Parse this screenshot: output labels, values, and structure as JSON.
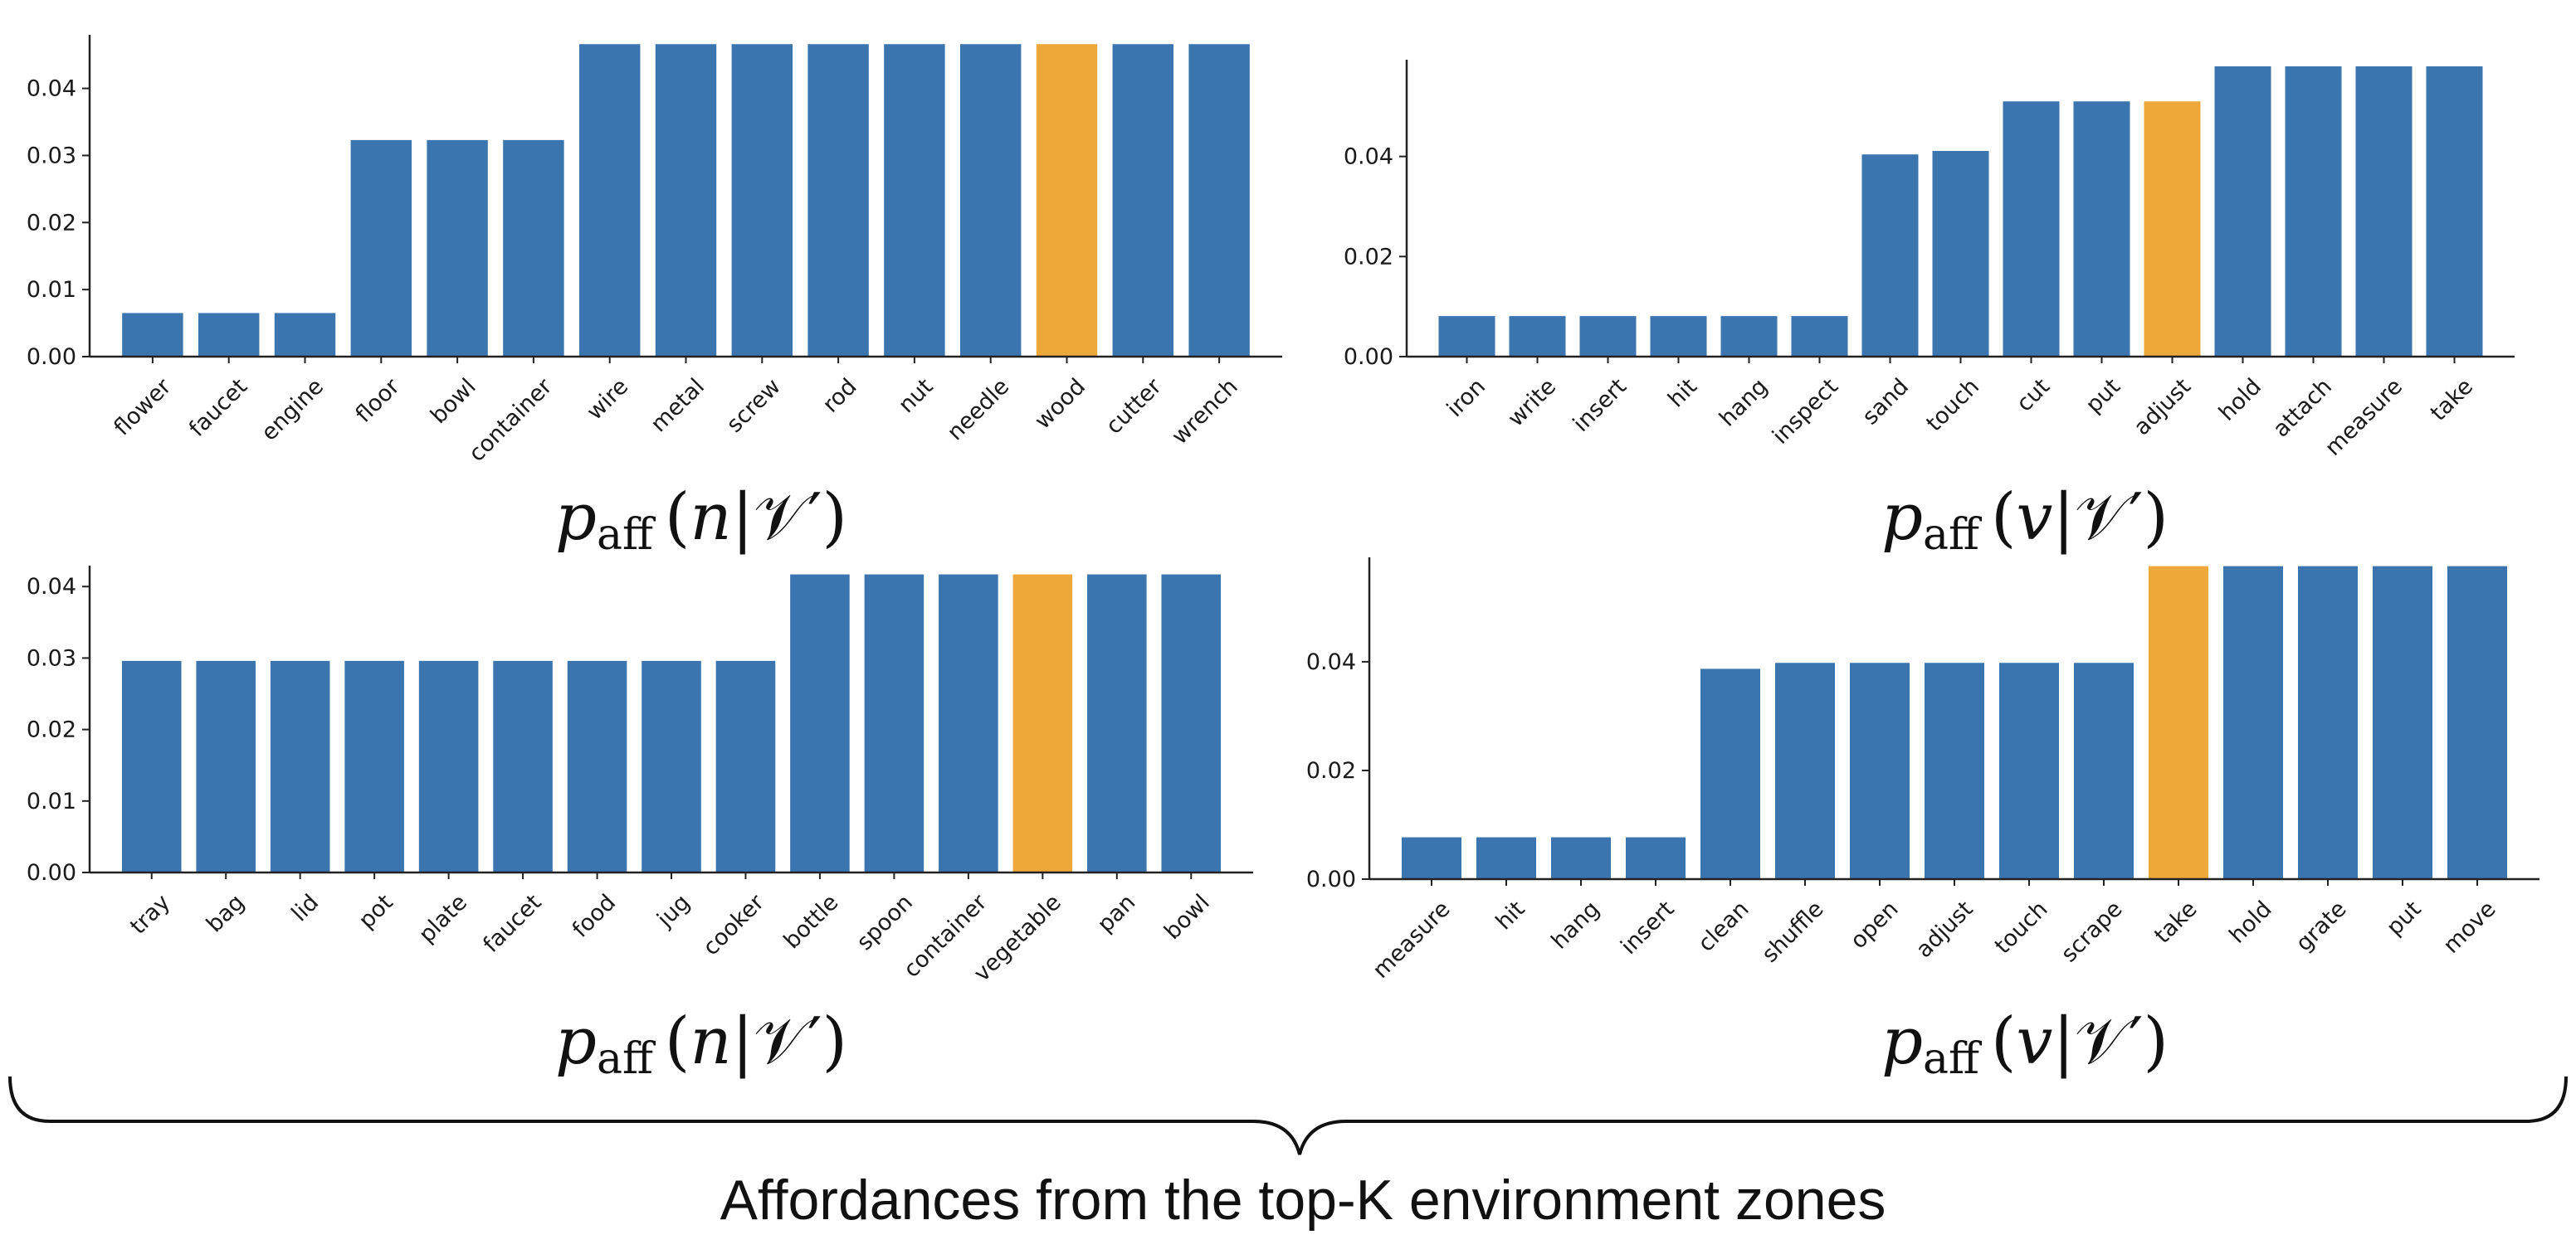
{
  "colors": {
    "bar": "#3a75af",
    "highlight": "#eea83a",
    "axis": "#222222"
  },
  "caption": "Affordances from the top-K environment zones",
  "chart_data": [
    {
      "type": "bar",
      "title": "",
      "xlabel": "p_aff (n|V′)",
      "xlabel_parts": {
        "p": "p",
        "sub": "aff",
        "var": "n",
        "cond": "𝒱′"
      },
      "ylabel": "",
      "ylim": [
        0,
        0.047
      ],
      "yticks": [
        "0.00",
        "0.01",
        "0.02",
        "0.03",
        "0.04"
      ],
      "categories": [
        "flower",
        "faucet",
        "engine",
        "floor",
        "bowl",
        "container",
        "wire",
        "metal",
        "screw",
        "rod",
        "nut",
        "needle",
        "wood",
        "cutter",
        "wrench"
      ],
      "values": [
        0.0065,
        0.0065,
        0.0065,
        0.0323,
        0.0323,
        0.0323,
        0.0466,
        0.0466,
        0.0466,
        0.0466,
        0.0466,
        0.0466,
        0.0466,
        0.0466,
        0.0466
      ],
      "highlight": [
        "wood"
      ]
    },
    {
      "type": "bar",
      "title": "",
      "xlabel": "p_aff (v|V′)",
      "xlabel_parts": {
        "p": "p",
        "sub": "aff",
        "var": "v",
        "cond": "𝒱′"
      },
      "ylabel": "",
      "ylim": [
        0,
        0.058
      ],
      "yticks": [
        "0.00",
        "0.02",
        "0.04"
      ],
      "categories": [
        "iron",
        "write",
        "insert",
        "hit",
        "hang",
        "inspect",
        "sand",
        "touch",
        "cut",
        "put",
        "adjust",
        "hold",
        "attach",
        "measure",
        "take"
      ],
      "values": [
        0.0081,
        0.0081,
        0.0081,
        0.0081,
        0.0081,
        0.0081,
        0.0404,
        0.0411,
        0.051,
        0.051,
        0.051,
        0.058,
        0.058,
        0.058,
        0.058
      ],
      "highlight": [
        "adjust"
      ]
    },
    {
      "type": "bar",
      "title": "",
      "xlabel": "p_aff (n|V′)",
      "xlabel_parts": {
        "p": "p",
        "sub": "aff",
        "var": "n",
        "cond": "𝒱′"
      },
      "ylabel": "",
      "ylim": [
        0,
        0.042
      ],
      "yticks": [
        "0.00",
        "0.01",
        "0.02",
        "0.03",
        "0.04"
      ],
      "categories": [
        "tray",
        "bag",
        "lid",
        "pot",
        "plate",
        "faucet",
        "food",
        "jug",
        "cooker",
        "bottle",
        "spoon",
        "container",
        "vegetable",
        "pan",
        "bowl"
      ],
      "values": [
        0.0296,
        0.0296,
        0.0296,
        0.0296,
        0.0296,
        0.0296,
        0.0296,
        0.0296,
        0.0296,
        0.0417,
        0.0417,
        0.0417,
        0.0417,
        0.0417,
        0.0417
      ],
      "highlight": [
        "vegetable"
      ]
    },
    {
      "type": "bar",
      "title": "",
      "xlabel": "p_aff (v|V′)",
      "xlabel_parts": {
        "p": "p",
        "sub": "aff",
        "var": "v",
        "cond": "𝒱′"
      },
      "ylabel": "",
      "ylim": [
        0,
        0.058
      ],
      "yticks": [
        "0.00",
        "0.02",
        "0.04"
      ],
      "categories": [
        "measure",
        "hit",
        "hang",
        "insert",
        "clean",
        "shuffle",
        "open",
        "adjust",
        "touch",
        "scrape",
        "take",
        "hold",
        "grate",
        "put",
        "move"
      ],
      "values": [
        0.0077,
        0.0077,
        0.0077,
        0.0077,
        0.0387,
        0.0398,
        0.0398,
        0.0398,
        0.0398,
        0.0398,
        0.0576,
        0.0576,
        0.0576,
        0.0576,
        0.0576
      ],
      "highlight": [
        "take"
      ]
    }
  ]
}
